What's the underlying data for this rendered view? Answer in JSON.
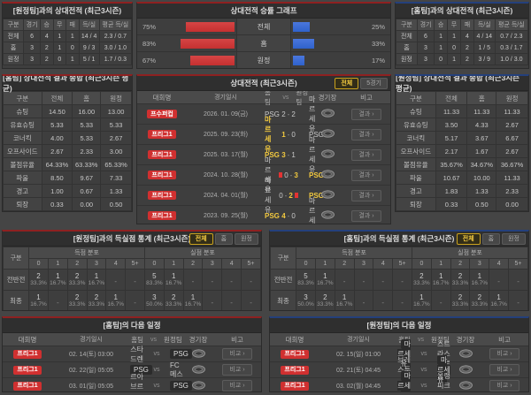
{
  "colors": {
    "home_accent": "#8e2121",
    "away_accent": "#24407c",
    "win_highlight": "#f2c93f",
    "bar_red": "#c53030",
    "bar_blue": "#2f62cc",
    "badge_red": "#d03030"
  },
  "top_left": {
    "title": "[원정팀]과의 상대전적 (최근3시즌)",
    "headers": [
      "구분",
      "경기",
      "승",
      "무",
      "패",
      "득/실",
      "평균 득/실"
    ],
    "rows": [
      [
        "전체",
        "6",
        "4",
        "1",
        "1",
        "14 / 4",
        "2.3 / 0.7"
      ],
      [
        "홈",
        "3",
        "2",
        "1",
        "0",
        "9 / 3",
        "3.0 / 1.0"
      ],
      [
        "원정",
        "3",
        "2",
        "0",
        "1",
        "5 / 1",
        "1.7 / 0.3"
      ]
    ]
  },
  "winrate_chart": {
    "type": "bar",
    "title": "상대전적 승률 그래프",
    "rows": [
      {
        "label": "전체",
        "left": "75%",
        "left_val": 75,
        "right": "25%",
        "right_val": 25
      },
      {
        "label": "홈",
        "left": "83%",
        "left_val": 83,
        "right": "33%",
        "right_val": 33
      },
      {
        "label": "원정",
        "left": "67%",
        "left_val": 67,
        "right": "17%",
        "right_val": 17
      }
    ]
  },
  "top_right": {
    "title": "[홈팀]과의 상대전적 (최근3시즌)",
    "headers": [
      "구분",
      "경기",
      "승",
      "무",
      "패",
      "득/실",
      "평균 득/실"
    ],
    "rows": [
      [
        "전체",
        "6",
        "1",
        "1",
        "4",
        "4 / 14",
        "0.7 / 2.3"
      ],
      [
        "홈",
        "3",
        "1",
        "0",
        "2",
        "1 / 5",
        "0.3 / 1.7"
      ],
      [
        "원정",
        "3",
        "0",
        "1",
        "2",
        "3 / 9",
        "1.0 / 3.0"
      ]
    ]
  },
  "h2h_stats_left": {
    "title": "[홈팀] 상대전적 결과 종합 (최근3시즌 평균)",
    "headers": [
      "구분",
      "전체",
      "홈",
      "원정"
    ],
    "rows": [
      [
        "슈팅",
        "14.50",
        "16.00",
        "13.00"
      ],
      [
        "유효슈팅",
        "5.33",
        "5.33",
        "5.33"
      ],
      [
        "코너킥",
        "4.00",
        "5.33",
        "2.67"
      ],
      [
        "오프사이드",
        "2.67",
        "2.33",
        "3.00"
      ],
      [
        "볼점유율",
        "64.33%",
        "63.33%",
        "65.33%"
      ],
      [
        "파울",
        "8.50",
        "9.67",
        "7.33"
      ],
      [
        "경고",
        "1.00",
        "0.67",
        "1.33"
      ],
      [
        "퇴장",
        "0.33",
        "0.00",
        "0.50"
      ]
    ]
  },
  "h2h_stats_right": {
    "title": "[원정팀] 상대전적 결과 종합 (최근3시즌 평균)",
    "headers": [
      "구분",
      "전체",
      "홈",
      "원정"
    ],
    "rows": [
      [
        "슈팅",
        "11.33",
        "11.33",
        "11.33"
      ],
      [
        "유효슈팅",
        "3.50",
        "4.33",
        "2.67"
      ],
      [
        "코너킥",
        "5.17",
        "3.67",
        "6.67"
      ],
      [
        "오프사이드",
        "2.17",
        "1.67",
        "2.67"
      ],
      [
        "볼점유율",
        "35.67%",
        "34.67%",
        "36.67%"
      ],
      [
        "파울",
        "10.67",
        "10.00",
        "11.33"
      ],
      [
        "경고",
        "1.83",
        "1.33",
        "2.33"
      ],
      [
        "퇴장",
        "0.33",
        "0.50",
        "0.00"
      ]
    ]
  },
  "h2h_matches": {
    "title": "상대전적 (최근3시즌)",
    "filters": [
      {
        "label": "전체",
        "selected": true
      },
      {
        "label": "5경기",
        "selected": false
      }
    ],
    "headers": {
      "league": "대회명",
      "date": "경기일시",
      "home": "홈팀",
      "vs": "vs",
      "away": "원정팀",
      "stadium": "경기장",
      "note": "비고"
    },
    "result_button": "결과 ›",
    "rows": [
      {
        "league": "프수퍼컵",
        "date": "2026. 01. 09(금)",
        "home": "PSG",
        "score_home": "2",
        "score_away": "2",
        "away": "마르세유",
        "winner": "",
        "red_card": ""
      },
      {
        "league": "프리그1",
        "date": "2025. 09. 23(화)",
        "home": "마르세유",
        "score_home": "1",
        "score_away": "0",
        "away": "PSG",
        "winner": "home",
        "red_card": ""
      },
      {
        "league": "프리그1",
        "date": "2025. 03. 17(월)",
        "home": "PSG",
        "score_home": "3",
        "score_away": "1",
        "away": "마르세유",
        "winner": "home",
        "red_card": ""
      },
      {
        "league": "프리그1",
        "date": "2024. 10. 28(월)",
        "home": "마르세유",
        "score_home": "0",
        "score_away": "3",
        "away": "PSG",
        "winner": "away",
        "red_card": "home"
      },
      {
        "league": "프리그1",
        "date": "2024. 04. 01(월)",
        "home": "마르세유",
        "score_home": "0",
        "score_away": "2",
        "away": "PSG",
        "winner": "away",
        "red_card": "away"
      },
      {
        "league": "프리그1",
        "date": "2023. 09. 25(월)",
        "home": "PSG",
        "score_home": "4",
        "score_away": "0",
        "away": "마르세유",
        "winner": "home",
        "red_card": ""
      }
    ]
  },
  "goals_left": {
    "title": "[원정팀]과의 득실점 통계 (최근3시즌)",
    "filters": [
      {
        "label": "전체",
        "selected": true
      },
      {
        "label": "홈",
        "selected": false
      },
      {
        "label": "원정",
        "selected": false
      }
    ],
    "col_header": "구분",
    "groups": [
      "득점 분포",
      "실점 분포"
    ],
    "cols": [
      "0",
      "1",
      "2",
      "3",
      "4",
      "5+"
    ],
    "rows": [
      {
        "label": "전반전",
        "scored": [
          [
            "2",
            "33.3%"
          ],
          [
            "1",
            "16.7%"
          ],
          [
            "2",
            "33.3%"
          ],
          [
            "1",
            "16.7%"
          ],
          [
            "-",
            ""
          ],
          [
            "-",
            ""
          ]
        ],
        "conceded": [
          [
            "5",
            "83.3%"
          ],
          [
            "1",
            "16.7%"
          ],
          [
            "-",
            ""
          ],
          [
            "-",
            ""
          ],
          [
            "-",
            ""
          ],
          [
            "-",
            ""
          ]
        ]
      },
      {
        "label": "최종",
        "scored": [
          [
            "1",
            "16.7%"
          ],
          [
            "-",
            ""
          ],
          [
            "2",
            "33.3%"
          ],
          [
            "2",
            "33.3%"
          ],
          [
            "1",
            "16.7%"
          ],
          [
            "-",
            ""
          ]
        ],
        "conceded": [
          [
            "3",
            "50.0%"
          ],
          [
            "2",
            "33.3%"
          ],
          [
            "1",
            "16.7%"
          ],
          [
            "-",
            ""
          ],
          [
            "-",
            ""
          ],
          [
            "-",
            ""
          ]
        ]
      }
    ]
  },
  "goals_right": {
    "title": "[홈팀]과의 득실점 통계 (최근3시즌)",
    "filters": [
      {
        "label": "전체",
        "selected": true
      },
      {
        "label": "홈",
        "selected": false
      },
      {
        "label": "원정",
        "selected": false
      }
    ],
    "col_header": "구분",
    "groups": [
      "득점 분포",
      "실점 분포"
    ],
    "cols": [
      "0",
      "1",
      "2",
      "3",
      "4",
      "5+"
    ],
    "rows": [
      {
        "label": "전반전",
        "scored": [
          [
            "5",
            "83.3%"
          ],
          [
            "1",
            "16.7%"
          ],
          [
            "-",
            ""
          ],
          [
            "-",
            ""
          ],
          [
            "-",
            ""
          ],
          [
            "-",
            ""
          ]
        ],
        "conceded": [
          [
            "2",
            "33.3%"
          ],
          [
            "1",
            "16.7%"
          ],
          [
            "2",
            "33.3%"
          ],
          [
            "1",
            "16.7%"
          ],
          [
            "-",
            ""
          ],
          [
            "-",
            ""
          ]
        ]
      },
      {
        "label": "최종",
        "scored": [
          [
            "3",
            "50.0%"
          ],
          [
            "2",
            "33.3%"
          ],
          [
            "1",
            "16.7%"
          ],
          [
            "-",
            ""
          ],
          [
            "-",
            ""
          ],
          [
            "-",
            ""
          ]
        ],
        "conceded": [
          [
            "1",
            "16.7%"
          ],
          [
            "-",
            ""
          ],
          [
            "2",
            "33.3%"
          ],
          [
            "2",
            "33.3%"
          ],
          [
            "1",
            "16.7%"
          ],
          [
            "-",
            ""
          ]
        ]
      }
    ]
  },
  "schedule_left": {
    "title": "[홈팀]의 다음 일정",
    "headers": {
      "league": "대회명",
      "date": "경기일시",
      "home": "홈팀",
      "vs": "vs",
      "away": "원정팀",
      "stadium": "경기장",
      "note": "비고"
    },
    "compare_button": "비교 ›",
    "rows": [
      {
        "league": "프리그1",
        "date": "02. 14(토) 03:00",
        "home": "스타드렌",
        "away": "PSG",
        "featured": "away"
      },
      {
        "league": "프리그1",
        "date": "02. 22(일) 05:05",
        "home": "PSG",
        "away": "FC메스",
        "featured": "home"
      },
      {
        "league": "프리그1",
        "date": "03. 01(일) 05:05",
        "home": "르아브르AC",
        "away": "PSG",
        "featured": "away"
      }
    ]
  },
  "schedule_right": {
    "title": "[원정팀]의 다음 일정",
    "headers": {
      "league": "대회명",
      "date": "경기일시",
      "home": "홈팀",
      "vs": "vs",
      "away": "원정팀",
      "stadium": "경기장",
      "note": "비고"
    },
    "compare_button": "비교 ›",
    "rows": [
      {
        "league": "프리그1",
        "date": "02. 15(일) 01:00",
        "home": "마르세유",
        "away": "스트라스부르",
        "featured": "home"
      },
      {
        "league": "프리그1",
        "date": "02. 21(토) 04:45",
        "home": "브레스투아",
        "away": "마르세유",
        "featured": "away"
      },
      {
        "league": "프리그1",
        "date": "03. 02(월) 04:45",
        "home": "마르세유",
        "away": "올랭피크리옹",
        "featured": "home"
      }
    ]
  }
}
